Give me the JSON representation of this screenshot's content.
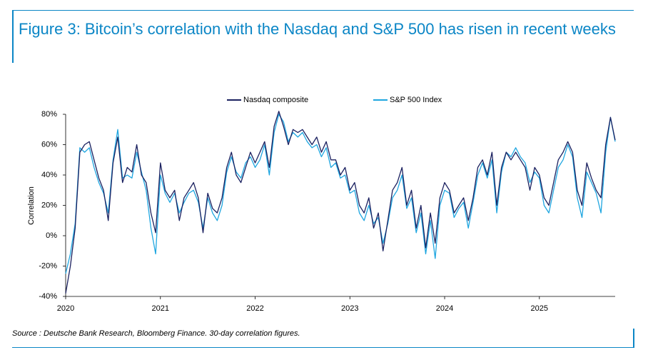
{
  "chart_data": {
    "type": "line",
    "title": "Figure 3: Bitcoin’s correlation with the Nasdaq and S&P 500 has risen in recent weeks",
    "source": "Source : Deutsche Bank Research, Bloomberg Finance. 30-day correlation figures.",
    "y_label": "Correlation",
    "x": [
      2020,
      2020.05,
      2020.1,
      2020.15,
      2020.2,
      2020.25,
      2020.3,
      2020.35,
      2020.4,
      2020.45,
      2020.5,
      2020.55,
      2020.6,
      2020.65,
      2020.7,
      2020.75,
      2020.8,
      2020.85,
      2020.9,
      2020.95,
      2021,
      2021.05,
      2021.1,
      2021.15,
      2021.2,
      2021.25,
      2021.3,
      2021.35,
      2021.4,
      2021.45,
      2021.5,
      2021.55,
      2021.6,
      2021.65,
      2021.7,
      2021.75,
      2021.8,
      2021.85,
      2021.9,
      2021.95,
      2022,
      2022.05,
      2022.1,
      2022.15,
      2022.2,
      2022.25,
      2022.3,
      2022.35,
      2022.4,
      2022.45,
      2022.5,
      2022.55,
      2022.6,
      2022.65,
      2022.7,
      2022.75,
      2022.8,
      2022.85,
      2022.9,
      2022.95,
      2023,
      2023.05,
      2023.1,
      2023.15,
      2023.2,
      2023.25,
      2023.3,
      2023.35,
      2023.4,
      2023.45,
      2023.5,
      2023.55,
      2023.6,
      2023.65,
      2023.7,
      2023.75,
      2023.8,
      2023.85,
      2023.9,
      2023.95,
      2024,
      2024.05,
      2024.1,
      2024.15,
      2024.2,
      2024.25,
      2024.3,
      2024.35,
      2024.4,
      2024.45,
      2024.5,
      2024.55,
      2024.6,
      2024.65,
      2024.7,
      2024.75,
      2024.8,
      2024.85,
      2024.9,
      2024.95,
      2025,
      2025.05,
      2025.1,
      2025.15,
      2025.2,
      2025.25,
      2025.3,
      2025.35,
      2025.4,
      2025.45,
      2025.5,
      2025.55,
      2025.6,
      2025.65,
      2025.7,
      2025.75,
      2025.8
    ],
    "series": [
      {
        "name": "Nasdaq composite",
        "color": "#1b2160",
        "values": [
          -38,
          -20,
          5,
          55,
          60,
          62,
          50,
          38,
          30,
          10,
          48,
          65,
          35,
          45,
          42,
          60,
          40,
          35,
          15,
          2,
          48,
          30,
          25,
          30,
          10,
          25,
          30,
          35,
          25,
          2,
          28,
          18,
          15,
          25,
          45,
          55,
          40,
          35,
          45,
          55,
          48,
          55,
          62,
          45,
          72,
          82,
          72,
          60,
          70,
          68,
          70,
          65,
          60,
          65,
          55,
          62,
          50,
          50,
          40,
          45,
          30,
          35,
          20,
          15,
          25,
          5,
          15,
          -10,
          10,
          30,
          35,
          45,
          20,
          30,
          5,
          20,
          -8,
          15,
          -5,
          25,
          35,
          30,
          15,
          20,
          25,
          10,
          25,
          45,
          50,
          40,
          55,
          20,
          45,
          55,
          50,
          55,
          50,
          45,
          30,
          45,
          40,
          25,
          20,
          35,
          50,
          55,
          62,
          55,
          30,
          20,
          48,
          38,
          30,
          25,
          60,
          78,
          63
        ]
      },
      {
        "name": "S&P 500 Index",
        "color": "#1fa6e0",
        "values": [
          -25,
          -12,
          8,
          58,
          55,
          58,
          45,
          35,
          28,
          15,
          50,
          70,
          38,
          40,
          38,
          55,
          42,
          30,
          5,
          -12,
          40,
          28,
          22,
          28,
          15,
          22,
          28,
          30,
          22,
          5,
          25,
          15,
          10,
          20,
          42,
          52,
          42,
          38,
          48,
          52,
          45,
          50,
          60,
          40,
          68,
          80,
          75,
          62,
          68,
          65,
          68,
          62,
          58,
          60,
          52,
          58,
          45,
          48,
          38,
          40,
          28,
          30,
          15,
          10,
          20,
          8,
          12,
          -5,
          8,
          25,
          30,
          40,
          18,
          25,
          2,
          15,
          -12,
          10,
          -15,
          20,
          30,
          28,
          12,
          18,
          22,
          5,
          22,
          40,
          48,
          38,
          50,
          15,
          42,
          55,
          52,
          58,
          52,
          48,
          35,
          42,
          38,
          20,
          15,
          30,
          45,
          50,
          60,
          52,
          25,
          12,
          42,
          35,
          28,
          15,
          55,
          78,
          62
        ]
      }
    ],
    "xlim": [
      2020,
      2025.8
    ],
    "xticks": [
      2020,
      2021,
      2022,
      2023,
      2024,
      2025
    ],
    "ylim": [
      -40,
      80
    ],
    "yticks": [
      {
        "value": -40,
        "label": "-40%"
      },
      {
        "value": -20,
        "label": "-20%"
      },
      {
        "value": 0,
        "label": "0%"
      },
      {
        "value": 20,
        "label": "20%"
      },
      {
        "value": 40,
        "label": "40%"
      },
      {
        "value": 60,
        "label": "60%"
      },
      {
        "value": 80,
        "label": "80%"
      }
    ],
    "legend": "top",
    "grid": false
  }
}
